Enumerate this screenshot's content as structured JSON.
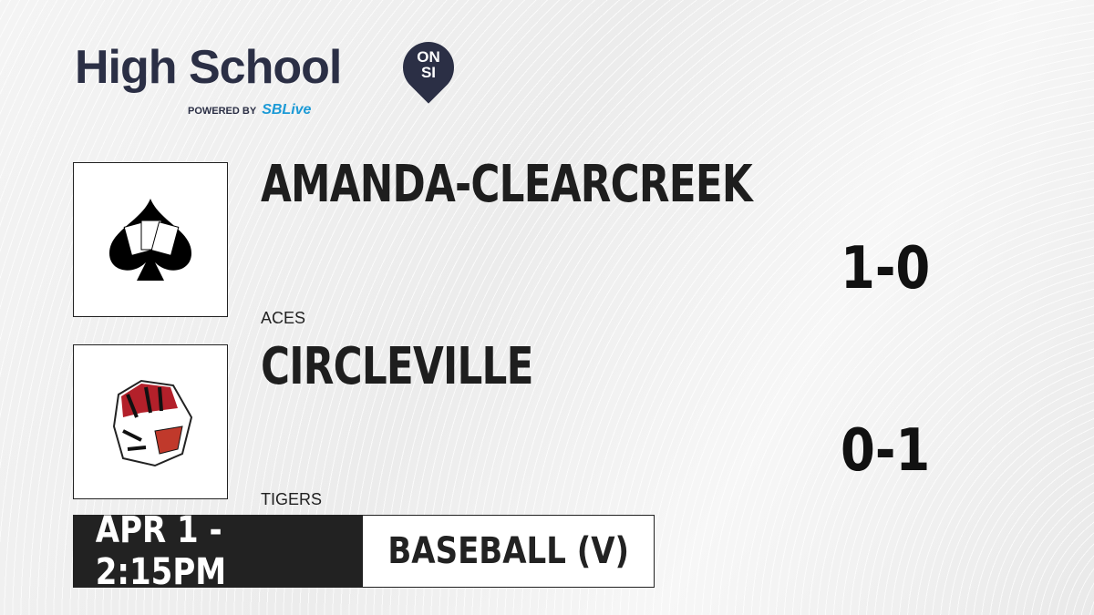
{
  "brand": {
    "title": "High School",
    "badge_top": "ON",
    "badge_bottom": "SI",
    "powered_by": "POWERED BY",
    "partner": "SBLive"
  },
  "home": {
    "name": "AMANDA-CLEARCREEK",
    "mascot": "ACES",
    "record": "1-0"
  },
  "away": {
    "name": "CIRCLEVILLE",
    "mascot": "TIGERS",
    "record": "0-1"
  },
  "game": {
    "datetime": "APR 1 - 2:15PM",
    "sport": "BASEBALL (V)"
  }
}
